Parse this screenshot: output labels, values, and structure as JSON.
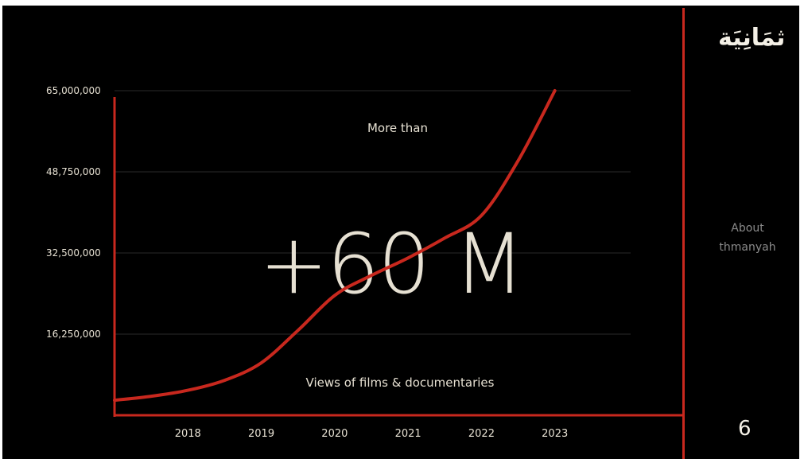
{
  "chart_data": {
    "type": "line",
    "title": "",
    "xlabel": "",
    "ylabel": "",
    "x_categories": [
      "2018",
      "2019",
      "2020",
      "2021",
      "2022",
      "2023"
    ],
    "x_axis_range": [
      2017.0,
      2024.0
    ],
    "y_axis_range": [
      0,
      65000000
    ],
    "y_ticks": [
      "16,250,000",
      "32,500,000",
      "48,750,000",
      "65,000,000"
    ],
    "y_tick_values": [
      16250000,
      32500000,
      48750000,
      65000000
    ],
    "grid": true,
    "series": [
      {
        "x": [
          2017.0,
          2017.5,
          2018.0,
          2018.5,
          2019.0,
          2019.5,
          2020.0,
          2020.5,
          2021.0,
          2021.5,
          2022.0,
          2022.5,
          2023.0
        ],
        "y": [
          3000000,
          3800000,
          5000000,
          7000000,
          10500000,
          17000000,
          24000000,
          28000000,
          31500000,
          35500000,
          40000000,
          51000000,
          65000000
        ],
        "color": "#c8281e"
      }
    ],
    "annotations": {
      "top": "More than",
      "big": "+60 M",
      "bottom": "Views of  films & documentaries"
    }
  },
  "sidebar": {
    "logo": "ثمَانِيَة",
    "about_line1": "About",
    "about_line2": "thmanyah",
    "page_number": "6"
  },
  "colors": {
    "background": "#000000",
    "accent": "#c8281e",
    "text": "#e6e0d2"
  }
}
